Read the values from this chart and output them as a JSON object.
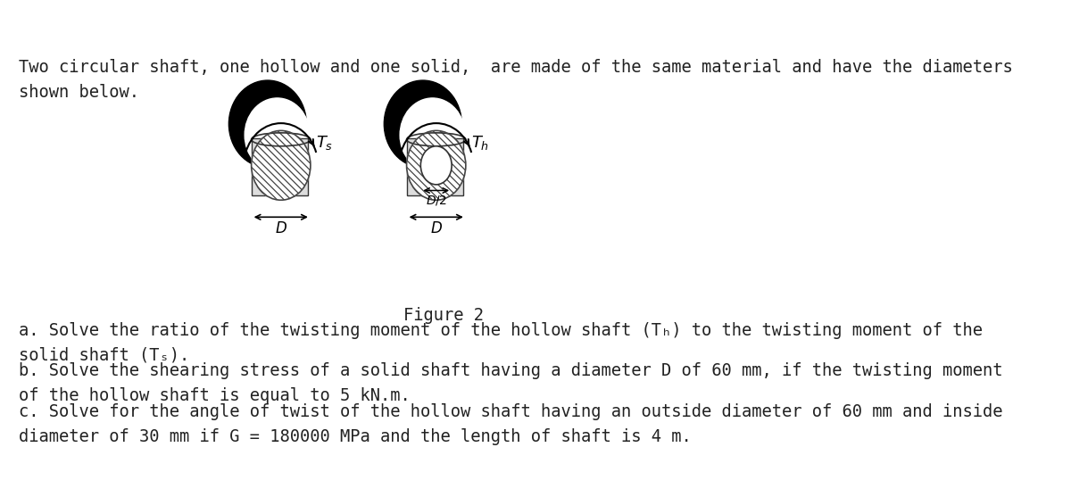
{
  "bg_color": "#ffffff",
  "title_text": "Two circular shaft, one hollow and one solid,  are made of the same material and have the diameters\nshown below.",
  "figure_caption": "Figure 2",
  "question_a": "a. Solve the ratio of the twisting moment of the hollow shaft (Tₕ) to the twisting moment of the\nsolid shaft (Tₛ).",
  "question_b": "b. Solve the shearing stress of a solid shaft having a diameter D of 60 mm, if the twisting moment\nof the hollow shaft is equal to 5 kN.m.",
  "question_c": "c. Solve for the angle of twist of the hollow shaft having an outside diameter of 60 mm and inside\ndiameter of 30 mm if G = 180000 MPa and the length of shaft is 4 m.",
  "font_family": "monospace",
  "font_size": 13.5,
  "text_color": "#222222"
}
